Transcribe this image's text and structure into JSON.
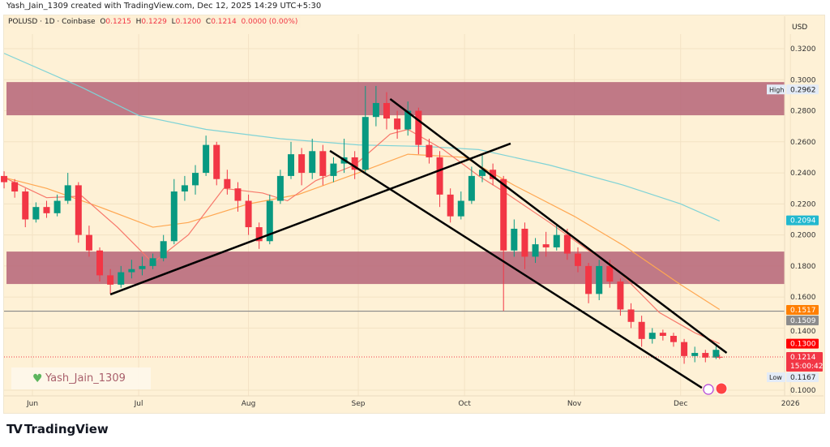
{
  "header": {
    "credit": "Yash_Jain_1309 created with TradingView.com, Dec 12, 2025 14:29 UTC+5:30",
    "symbol": "POLUSD · 1D · Coinbase",
    "o_label": "O",
    "o": "0.1215",
    "h_label": "H",
    "h": "0.1229",
    "l_label": "L",
    "l": "0.1200",
    "c_label": "C",
    "c": "0.1214",
    "change": "0.0000 (0.00%)"
  },
  "watermark": {
    "text": "Yash_Jain_1309",
    "icon": "green-heart-icon"
  },
  "brand": {
    "name": "TradingView",
    "logo": "TV"
  },
  "colors": {
    "up": "#089981",
    "down": "#f23645",
    "zone": "#b56478",
    "ma200": "#7fd3d6",
    "ma50": "#ffa751",
    "ma20": "#f7786b",
    "hline": "#888888",
    "bg": "#fef1d6"
  },
  "chart_data": {
    "type": "candlestick",
    "year": 2025,
    "currency_label": "USD",
    "ylim": [
      0.09,
      0.335
    ],
    "y_ticks": [
      "0.3200",
      "0.3000",
      "0.2800",
      "0.2600",
      "0.2400",
      "0.2200",
      "0.2000",
      "0.1800",
      "0.1600",
      "0.1400",
      "0.1000"
    ],
    "x_ticks": [
      {
        "label": "Jun",
        "date": "2025-06-01"
      },
      {
        "label": "Jul",
        "date": "2025-07-01"
      },
      {
        "label": "Aug",
        "date": "2025-08-01"
      },
      {
        "label": "Sep",
        "date": "2025-09-01"
      },
      {
        "label": "Oct",
        "date": "2025-10-01"
      },
      {
        "label": "Nov",
        "date": "2025-11-01"
      },
      {
        "label": "Dec",
        "date": "2025-12-01"
      },
      {
        "label": "2026",
        "date": "2026-01-01"
      }
    ],
    "candles": [
      [
        "2025-05-24",
        0.238,
        0.241,
        0.23,
        0.234
      ],
      [
        "2025-05-27",
        0.234,
        0.236,
        0.224,
        0.228
      ],
      [
        "2025-05-30",
        0.228,
        0.23,
        0.205,
        0.21
      ],
      [
        "2025-06-02",
        0.21,
        0.221,
        0.208,
        0.218
      ],
      [
        "2025-06-05",
        0.218,
        0.222,
        0.211,
        0.214
      ],
      [
        "2025-06-08",
        0.214,
        0.226,
        0.212,
        0.222
      ],
      [
        "2025-06-11",
        0.222,
        0.24,
        0.22,
        0.232
      ],
      [
        "2025-06-14",
        0.232,
        0.234,
        0.195,
        0.2
      ],
      [
        "2025-06-17",
        0.2,
        0.206,
        0.186,
        0.19
      ],
      [
        "2025-06-20",
        0.19,
        0.192,
        0.17,
        0.174
      ],
      [
        "2025-06-23",
        0.174,
        0.178,
        0.162,
        0.168
      ],
      [
        "2025-06-26",
        0.168,
        0.18,
        0.166,
        0.176
      ],
      [
        "2025-06-29",
        0.176,
        0.184,
        0.172,
        0.178
      ],
      [
        "2025-07-02",
        0.178,
        0.186,
        0.174,
        0.18
      ],
      [
        "2025-07-05",
        0.18,
        0.188,
        0.178,
        0.185
      ],
      [
        "2025-07-08",
        0.185,
        0.2,
        0.183,
        0.196
      ],
      [
        "2025-07-11",
        0.196,
        0.236,
        0.194,
        0.228
      ],
      [
        "2025-07-14",
        0.228,
        0.238,
        0.222,
        0.232
      ],
      [
        "2025-07-17",
        0.232,
        0.245,
        0.226,
        0.24
      ],
      [
        "2025-07-20",
        0.24,
        0.264,
        0.238,
        0.258
      ],
      [
        "2025-07-23",
        0.258,
        0.26,
        0.232,
        0.236
      ],
      [
        "2025-07-26",
        0.236,
        0.242,
        0.226,
        0.23
      ],
      [
        "2025-07-29",
        0.23,
        0.234,
        0.215,
        0.222
      ],
      [
        "2025-08-01",
        0.222,
        0.226,
        0.2,
        0.205
      ],
      [
        "2025-08-04",
        0.205,
        0.208,
        0.191,
        0.196
      ],
      [
        "2025-08-07",
        0.196,
        0.226,
        0.194,
        0.222
      ],
      [
        "2025-08-10",
        0.222,
        0.242,
        0.22,
        0.238
      ],
      [
        "2025-08-13",
        0.238,
        0.26,
        0.236,
        0.252
      ],
      [
        "2025-08-16",
        0.252,
        0.256,
        0.232,
        0.24
      ],
      [
        "2025-08-19",
        0.24,
        0.262,
        0.236,
        0.254
      ],
      [
        "2025-08-22",
        0.254,
        0.258,
        0.232,
        0.238
      ],
      [
        "2025-08-25",
        0.238,
        0.25,
        0.234,
        0.246
      ],
      [
        "2025-08-28",
        0.246,
        0.262,
        0.24,
        0.25
      ],
      [
        "2025-08-31",
        0.25,
        0.254,
        0.236,
        0.242
      ],
      [
        "2025-09-03",
        0.242,
        0.296,
        0.24,
        0.276
      ],
      [
        "2025-09-06",
        0.276,
        0.296,
        0.27,
        0.285
      ],
      [
        "2025-09-09",
        0.285,
        0.292,
        0.268,
        0.275
      ],
      [
        "2025-09-12",
        0.275,
        0.28,
        0.262,
        0.268
      ],
      [
        "2025-09-15",
        0.268,
        0.286,
        0.264,
        0.28
      ],
      [
        "2025-09-18",
        0.28,
        0.282,
        0.252,
        0.258
      ],
      [
        "2025-09-21",
        0.258,
        0.262,
        0.246,
        0.25
      ],
      [
        "2025-09-24",
        0.25,
        0.254,
        0.218,
        0.226
      ],
      [
        "2025-09-27",
        0.226,
        0.23,
        0.208,
        0.212
      ],
      [
        "2025-09-30",
        0.212,
        0.228,
        0.21,
        0.222
      ],
      [
        "2025-10-03",
        0.222,
        0.244,
        0.22,
        0.238
      ],
      [
        "2025-10-06",
        0.238,
        0.252,
        0.234,
        0.242
      ],
      [
        "2025-10-09",
        0.242,
        0.246,
        0.232,
        0.236
      ],
      [
        "2025-10-12",
        0.236,
        0.238,
        0.151,
        0.19
      ],
      [
        "2025-10-15",
        0.19,
        0.21,
        0.186,
        0.204
      ],
      [
        "2025-10-18",
        0.204,
        0.208,
        0.178,
        0.186
      ],
      [
        "2025-10-21",
        0.186,
        0.198,
        0.182,
        0.194
      ],
      [
        "2025-10-24",
        0.194,
        0.202,
        0.186,
        0.192
      ],
      [
        "2025-10-27",
        0.192,
        0.206,
        0.19,
        0.2
      ],
      [
        "2025-10-30",
        0.2,
        0.204,
        0.184,
        0.188
      ],
      [
        "2025-11-02",
        0.188,
        0.192,
        0.176,
        0.18
      ],
      [
        "2025-11-05",
        0.18,
        0.182,
        0.156,
        0.162
      ],
      [
        "2025-11-08",
        0.162,
        0.184,
        0.158,
        0.18
      ],
      [
        "2025-11-11",
        0.18,
        0.184,
        0.166,
        0.17
      ],
      [
        "2025-11-14",
        0.17,
        0.172,
        0.148,
        0.152
      ],
      [
        "2025-11-17",
        0.152,
        0.156,
        0.14,
        0.144
      ],
      [
        "2025-11-20",
        0.144,
        0.148,
        0.128,
        0.133
      ],
      [
        "2025-11-23",
        0.133,
        0.14,
        0.13,
        0.137
      ],
      [
        "2025-11-26",
        0.137,
        0.139,
        0.132,
        0.135
      ],
      [
        "2025-11-29",
        0.135,
        0.137,
        0.128,
        0.131
      ],
      [
        "2025-12-02",
        0.131,
        0.133,
        0.117,
        0.122
      ],
      [
        "2025-12-05",
        0.122,
        0.128,
        0.118,
        0.124
      ],
      [
        "2025-12-08",
        0.124,
        0.126,
        0.118,
        0.121
      ],
      [
        "2025-12-11",
        0.121,
        0.13,
        0.12,
        0.126
      ],
      [
        "2025-12-12",
        0.1215,
        0.1229,
        0.12,
        0.1214
      ]
    ],
    "moving_averages": [
      {
        "color": "#7fd3d6",
        "points": [
          [
            "2025-05-24",
            0.317
          ],
          [
            "2025-06-15",
            0.295
          ],
          [
            "2025-07-01",
            0.277
          ],
          [
            "2025-07-20",
            0.268
          ],
          [
            "2025-08-10",
            0.262
          ],
          [
            "2025-09-01",
            0.258
          ],
          [
            "2025-09-20",
            0.257
          ],
          [
            "2025-10-05",
            0.255
          ],
          [
            "2025-10-25",
            0.245
          ],
          [
            "2025-11-15",
            0.232
          ],
          [
            "2025-12-01",
            0.22
          ],
          [
            "2025-12-12",
            0.209
          ]
        ]
      },
      {
        "color": "#ffa751",
        "points": [
          [
            "2025-05-24",
            0.237
          ],
          [
            "2025-06-05",
            0.23
          ],
          [
            "2025-06-20",
            0.218
          ],
          [
            "2025-07-05",
            0.205
          ],
          [
            "2025-07-15",
            0.208
          ],
          [
            "2025-08-01",
            0.22
          ],
          [
            "2025-08-15",
            0.226
          ],
          [
            "2025-09-01",
            0.24
          ],
          [
            "2025-09-15",
            0.252
          ],
          [
            "2025-10-01",
            0.25
          ],
          [
            "2025-10-15",
            0.232
          ],
          [
            "2025-11-01",
            0.212
          ],
          [
            "2025-11-15",
            0.193
          ],
          [
            "2025-12-01",
            0.168
          ],
          [
            "2025-12-12",
            0.152
          ]
        ]
      },
      {
        "color": "#f7786b",
        "points": [
          [
            "2025-05-24",
            0.237
          ],
          [
            "2025-06-05",
            0.224
          ],
          [
            "2025-06-15",
            0.225
          ],
          [
            "2025-06-25",
            0.205
          ],
          [
            "2025-07-05",
            0.182
          ],
          [
            "2025-07-15",
            0.2
          ],
          [
            "2025-07-25",
            0.23
          ],
          [
            "2025-08-05",
            0.227
          ],
          [
            "2025-08-12",
            0.222
          ],
          [
            "2025-08-20",
            0.235
          ],
          [
            "2025-08-31",
            0.245
          ],
          [
            "2025-09-10",
            0.265
          ],
          [
            "2025-09-15",
            0.268
          ],
          [
            "2025-09-25",
            0.255
          ],
          [
            "2025-10-05",
            0.238
          ],
          [
            "2025-10-12",
            0.228
          ],
          [
            "2025-10-25",
            0.208
          ],
          [
            "2025-11-05",
            0.19
          ],
          [
            "2025-11-12",
            0.18
          ],
          [
            "2025-11-25",
            0.15
          ],
          [
            "2025-12-05",
            0.137
          ],
          [
            "2025-12-12",
            0.13
          ]
        ]
      }
    ],
    "zones": [
      {
        "top": 0.2985,
        "bottom": 0.2771
      },
      {
        "top": 0.1893,
        "bottom": 0.1684
      }
    ],
    "horizontal_line": 0.1509,
    "trend_lines": [
      [
        [
          "2025-06-23",
          0.1617
        ],
        [
          "2025-10-14",
          0.2589
        ]
      ],
      [
        [
          "2025-09-10",
          0.2876
        ],
        [
          "2025-12-14",
          0.124
        ]
      ],
      [
        [
          "2025-08-24",
          0.2542
        ],
        [
          "2025-12-07",
          0.1015
        ]
      ]
    ],
    "price_labels": [
      {
        "text": "0.2962",
        "value": 0.2962,
        "tag": "High",
        "bg": "#e3ebf7",
        "fg": "#222"
      },
      {
        "text": "0.2094",
        "value": 0.2094,
        "bg": "#22b8cf",
        "fg": "#fff"
      },
      {
        "text": "0.1517",
        "value": 0.1517,
        "bg": "#ff7f00",
        "fg": "#fff"
      },
      {
        "text": "0.1509",
        "value": 0.1509,
        "bg": "#8c8c8c",
        "fg": "#fff"
      },
      {
        "text": "0.1300",
        "value": 0.13,
        "bg": "#ff0000",
        "fg": "#fff"
      },
      {
        "text": "0.1214",
        "value": 0.1214,
        "sub": "15:00:42",
        "bg": "#f23645",
        "fg": "#fff"
      },
      {
        "text": "0.1167",
        "value": 0.1167,
        "tag": "Low",
        "bg": "#e3ebf7",
        "fg": "#222"
      }
    ]
  }
}
